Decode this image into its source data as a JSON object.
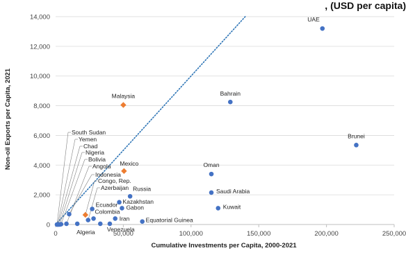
{
  "chart_data": {
    "type": "scatter",
    "title_fragment": ", (USD per capita)",
    "xlabel": "Cumulative Investments per Capita, 2000-2021",
    "ylabel": "Non-oil Exports per Capita, 2021",
    "xlim": [
      0,
      250000
    ],
    "ylim": [
      0,
      14000
    ],
    "x_ticks": [
      "0",
      "50,000",
      "100,000",
      "150,000",
      "200,000",
      "250,000"
    ],
    "y_ticks": [
      "0",
      "2,000",
      "4,000",
      "6,000",
      "8,000",
      "10,000",
      "12,000",
      "14,000"
    ],
    "grid": "horizontal",
    "colors": {
      "circle": "#4472C4",
      "diamond": "#ED7D31",
      "trend": "#2E75B6",
      "grid": "#D9D9D9"
    },
    "trendline": {
      "style": "dotted",
      "x": [
        0,
        140000
      ],
      "y": [
        0,
        14000
      ]
    },
    "points": [
      {
        "label": "UAE",
        "x": 197000,
        "y": 13200,
        "marker": "circle"
      },
      {
        "label": "Bahrain",
        "x": 129000,
        "y": 8250,
        "marker": "circle"
      },
      {
        "label": "Brunei",
        "x": 222000,
        "y": 5350,
        "marker": "circle"
      },
      {
        "label": "Malaysia",
        "x": 50000,
        "y": 8050,
        "marker": "diamond"
      },
      {
        "label": "Oman",
        "x": 115000,
        "y": 3400,
        "marker": "circle"
      },
      {
        "label": "Mexico",
        "x": 50500,
        "y": 3600,
        "marker": "diamond"
      },
      {
        "label": "Saudi Arabia",
        "x": 115000,
        "y": 2150,
        "marker": "circle"
      },
      {
        "label": "Kuwait",
        "x": 120000,
        "y": 1100,
        "marker": "circle"
      },
      {
        "label": "Russia",
        "x": 55000,
        "y": 1900,
        "marker": "circle"
      },
      {
        "label": "Kazakhstan",
        "x": 47000,
        "y": 1500,
        "marker": "circle"
      },
      {
        "label": "Gabon",
        "x": 49000,
        "y": 1100,
        "marker": "circle"
      },
      {
        "label": "Iran",
        "x": 44000,
        "y": 400,
        "marker": "circle"
      },
      {
        "label": "Equatorial Guinea",
        "x": 64000,
        "y": 200,
        "marker": "circle"
      },
      {
        "label": "Venezuela",
        "x": 40000,
        "y": 50,
        "marker": "circle"
      },
      {
        "label": "Ecuador",
        "x": 27000,
        "y": 1050,
        "marker": "circle"
      },
      {
        "label": "Colombia",
        "x": 28000,
        "y": 400,
        "marker": "circle"
      },
      {
        "label": "Algeria",
        "x": 16000,
        "y": 50,
        "marker": "circle"
      },
      {
        "label": "Azerbaijan",
        "x": 24000,
        "y": 300,
        "marker": "circle"
      },
      {
        "label": "Congo, Rep.",
        "x": 22000,
        "y": 650,
        "marker": "diamond"
      },
      {
        "label": "Indonesia",
        "x": 10000,
        "y": 700,
        "marker": "circle"
      },
      {
        "label": "Angola",
        "x": 8000,
        "y": 50,
        "marker": "circle"
      },
      {
        "label": "Bolivia",
        "x": 4000,
        "y": 20,
        "marker": "circle"
      },
      {
        "label": "Nigeria",
        "x": 3000,
        "y": 0,
        "marker": "circle"
      },
      {
        "label": "Chad",
        "x": 2000,
        "y": 0,
        "marker": "circle"
      },
      {
        "label": "Yemen",
        "x": 1500,
        "y": 0,
        "marker": "circle"
      },
      {
        "label": "South Sudan",
        "x": 1000,
        "y": 0,
        "marker": "circle"
      },
      {
        "label": "",
        "x": 33000,
        "y": 50,
        "marker": "circle"
      }
    ]
  }
}
